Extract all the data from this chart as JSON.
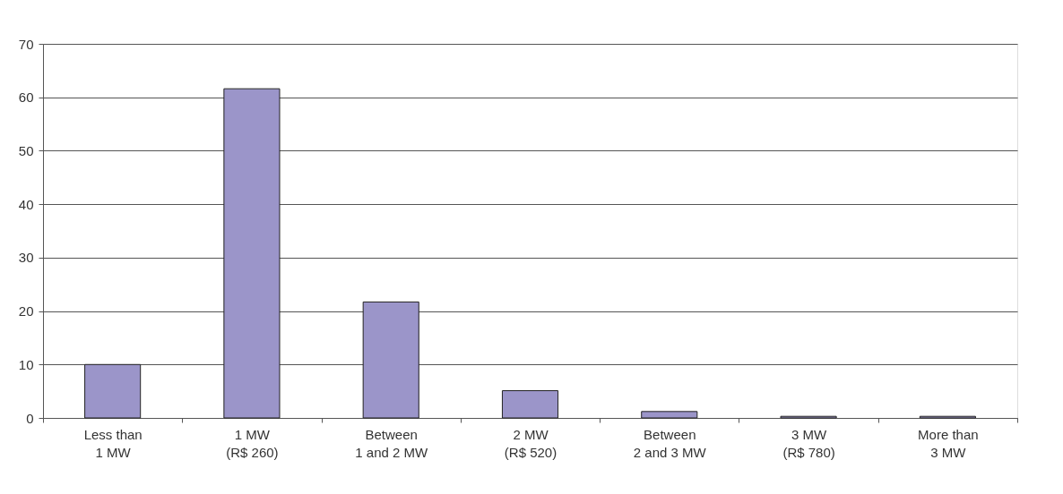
{
  "chart_data": {
    "type": "bar",
    "categories": [
      "Less than\n1 MW",
      "1 MW\n(R$ 260)",
      "Between\n1 and 2 MW",
      "2 MW\n(R$ 520)",
      "Between\n2 and 3 MW",
      "3 MW\n(R$ 780)",
      "More than\n3 MW"
    ],
    "values": [
      10,
      61.6,
      21.7,
      5.1,
      1.2,
      0.3,
      0.3
    ],
    "color": "#9b95c9",
    "ylim": [
      0,
      70
    ],
    "yticks": [
      0,
      10,
      20,
      30,
      40,
      50,
      60,
      70
    ],
    "grid": "y"
  }
}
